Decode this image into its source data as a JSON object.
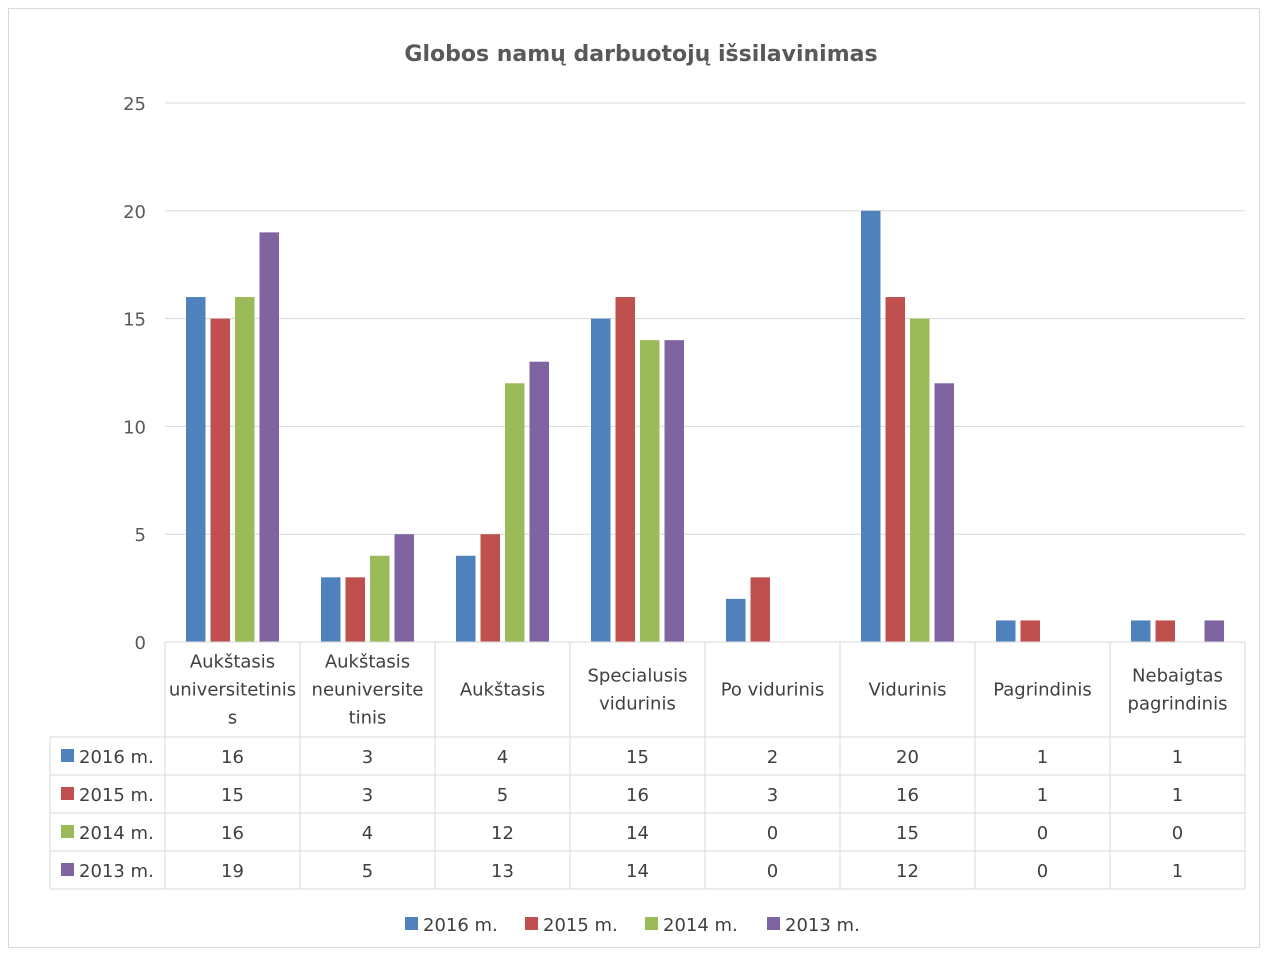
{
  "chart_data": {
    "type": "bar",
    "title": "Globos namų darbuotojų išsilavinimas",
    "categories": [
      [
        "Aukštasis",
        "universitetinis",
        "s"
      ],
      [
        "Aukštasis",
        "neuniversite",
        "tinis"
      ],
      [
        "Aukštasis"
      ],
      [
        "Specialusis",
        "vidurinis"
      ],
      [
        "Po vidurinis"
      ],
      [
        "Vidurinis"
      ],
      [
        "Pagrindinis"
      ],
      [
        "Nebaigtas",
        "pagrindinis"
      ]
    ],
    "series": [
      {
        "name": "2016 m.",
        "color": "#4f81bd",
        "values": [
          16,
          3,
          4,
          15,
          2,
          20,
          1,
          1
        ]
      },
      {
        "name": "2015 m.",
        "color": "#c0504d",
        "values": [
          15,
          3,
          5,
          16,
          3,
          16,
          1,
          1
        ]
      },
      {
        "name": "2014 m.",
        "color": "#9bbb59",
        "values": [
          16,
          4,
          12,
          14,
          0,
          15,
          0,
          0
        ]
      },
      {
        "name": "2013 m.",
        "color": "#8064a2",
        "values": [
          19,
          5,
          13,
          14,
          0,
          12,
          0,
          1
        ]
      }
    ],
    "ylim": [
      0,
      25
    ],
    "yticks": [
      "0",
      "5",
      "10",
      "15",
      "20",
      "25"
    ],
    "grid": true,
    "data_table": true,
    "legend_position": "bottom"
  }
}
